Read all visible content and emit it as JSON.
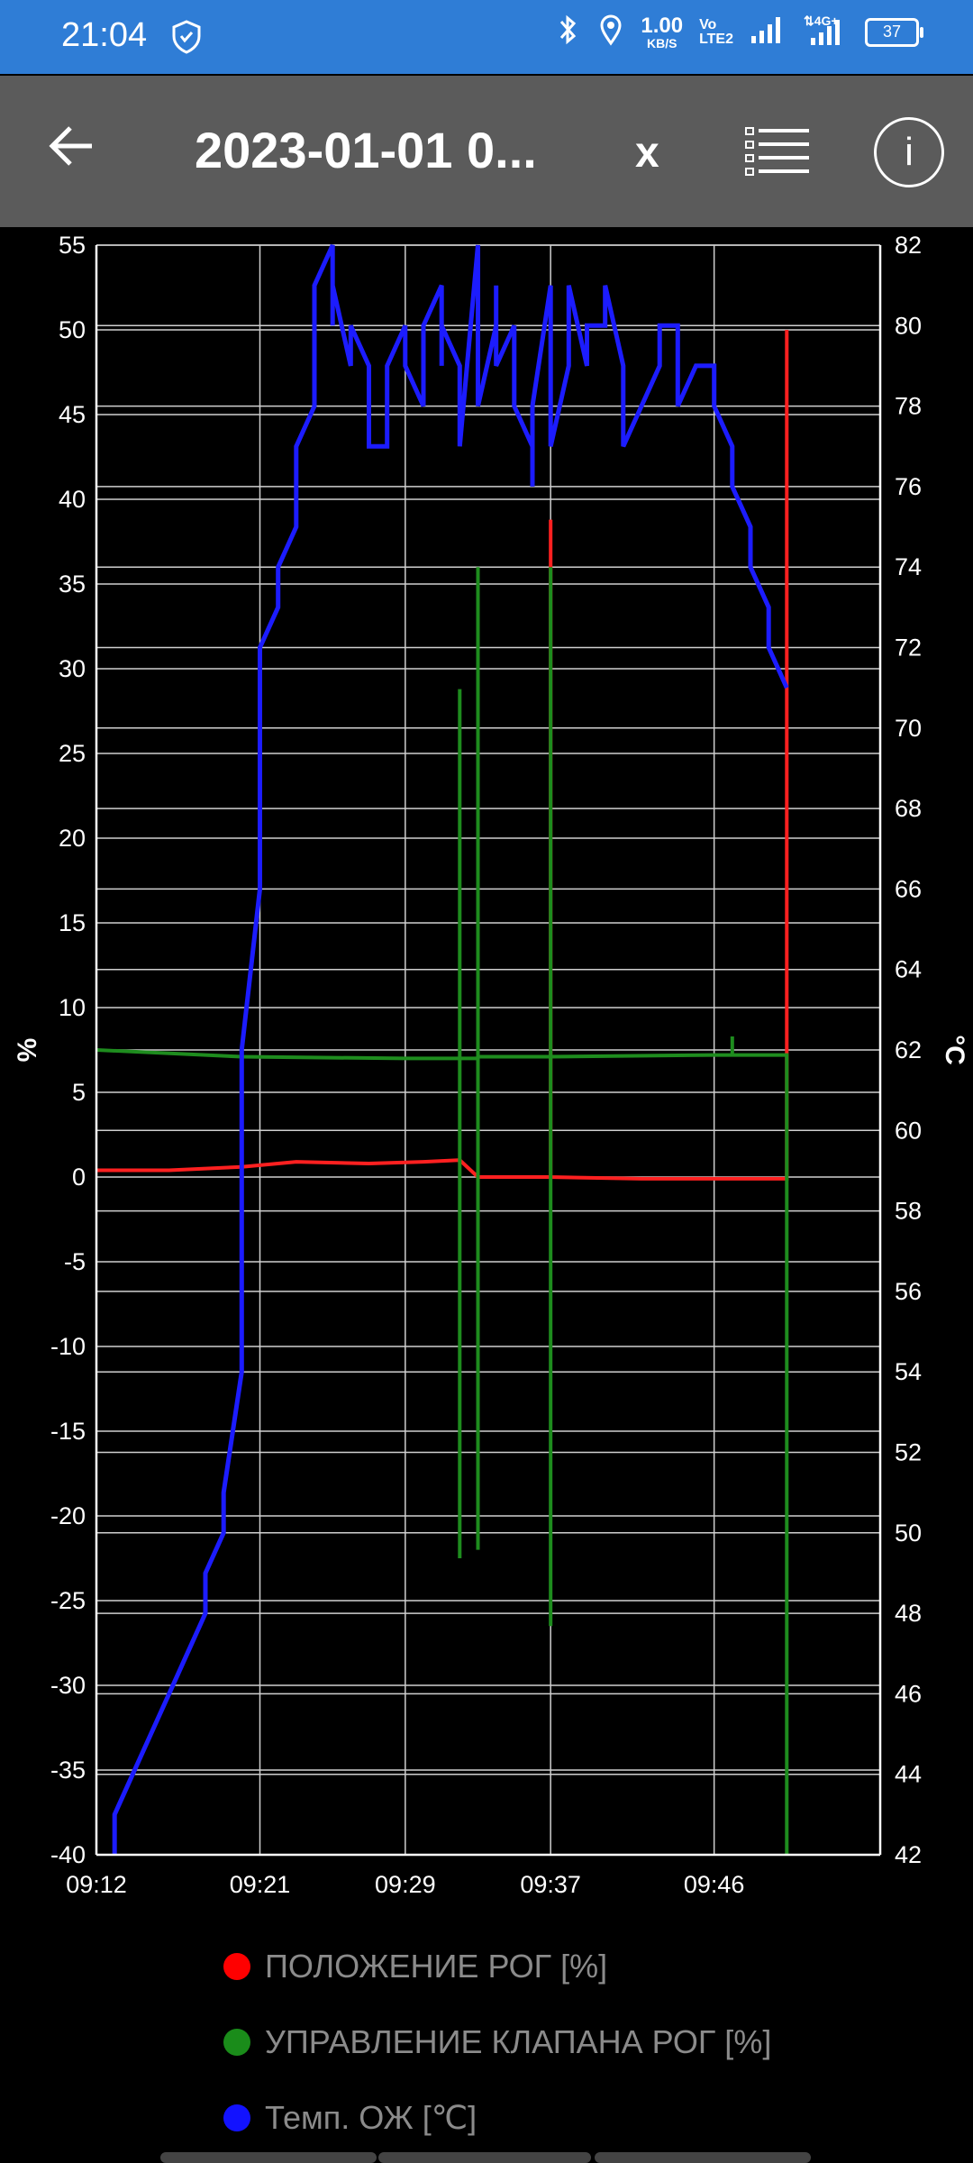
{
  "status_bar": {
    "time": "21:04",
    "net_speed_value": "1.00",
    "net_speed_unit": "KB/S",
    "volte_top": "Vo",
    "volte_bottom": "LTE2",
    "battery": "37",
    "icons": [
      "shield-icon",
      "bluetooth-icon",
      "location-icon",
      "signal-icon",
      "4g-signal-icon",
      "battery-icon"
    ]
  },
  "app_bar": {
    "title": "2023-01-01 0...",
    "close_label": "x",
    "info_label": "i",
    "icons": [
      "back-arrow-icon",
      "list-icon",
      "info-icon"
    ]
  },
  "chart_data": {
    "type": "line",
    "x_ticks": [
      "09:12",
      "09:21",
      "09:29",
      "09:37",
      "09:46"
    ],
    "left_axis": {
      "label": "%",
      "ticks": [
        55,
        50,
        45,
        40,
        35,
        30,
        25,
        20,
        15,
        10,
        5,
        0,
        -5,
        -10,
        -15,
        -20,
        -25,
        -30,
        -35,
        -40
      ],
      "range": [
        -40,
        55
      ]
    },
    "right_axis": {
      "label": "°C",
      "ticks": [
        82,
        80,
        78,
        76,
        74,
        72,
        70,
        68,
        66,
        64,
        62,
        60,
        58,
        56,
        54,
        52,
        50,
        48,
        46,
        44,
        42
      ],
      "range": [
        42,
        82
      ]
    },
    "grid": true,
    "series": [
      {
        "name": "ПОЛОЖЕНИЕ РОГ [%]",
        "axis": "left",
        "color": "#ff2020",
        "points": [
          [
            "09:12",
            0.4
          ],
          [
            "09:16",
            0.4
          ],
          [
            "09:20",
            0.6
          ],
          [
            "09:23",
            0.9
          ],
          [
            "09:27",
            0.8
          ],
          [
            "09:30",
            0.9
          ],
          [
            "09:32",
            1.0
          ],
          [
            "09:33",
            0.0
          ],
          [
            "09:37",
            0.0
          ],
          [
            "09:37",
            38.8
          ],
          [
            "09:37",
            36.0
          ],
          [
            "09:37",
            0.0
          ],
          [
            "09:42",
            -0.1
          ],
          [
            "09:50",
            -0.1
          ],
          [
            "09:50",
            50.0
          ],
          [
            "09:50",
            -0.2
          ]
        ]
      },
      {
        "name": "УПРАВЛЕНИЕ КЛАПАНА РОГ [%]",
        "axis": "left",
        "color": "#1e8c1e",
        "points": [
          [
            "09:12",
            7.5
          ],
          [
            "09:20",
            7.1
          ],
          [
            "09:29",
            7.0
          ],
          [
            "09:32",
            7.0
          ],
          [
            "09:32",
            28.8
          ],
          [
            "09:32",
            -22.5
          ],
          [
            "09:32",
            7.0
          ],
          [
            "09:33",
            7.0
          ],
          [
            "09:33",
            36.0
          ],
          [
            "09:33",
            -22.0
          ],
          [
            "09:33",
            7.1
          ],
          [
            "09:37",
            7.1
          ],
          [
            "09:37",
            36.0
          ],
          [
            "09:37",
            -26.5
          ],
          [
            "09:37",
            7.1
          ],
          [
            "09:46",
            7.2
          ],
          [
            "09:47",
            7.2
          ],
          [
            "09:47",
            8.3
          ],
          [
            "09:47",
            7.2
          ],
          [
            "09:50",
            7.2
          ],
          [
            "09:50",
            -40.0
          ]
        ]
      },
      {
        "name": "Темп. ОЖ [°C]",
        "axis": "right",
        "color": "#1c1cff",
        "points": [
          [
            "09:13",
            42.0
          ],
          [
            "09:13",
            43.0
          ],
          [
            "09:14",
            44.0
          ],
          [
            "09:15",
            45.0
          ],
          [
            "09:16",
            46.0
          ],
          [
            "09:17",
            47.0
          ],
          [
            "09:18",
            48.0
          ],
          [
            "09:18",
            49.0
          ],
          [
            "09:19",
            50.0
          ],
          [
            "09:19",
            51.0
          ],
          [
            "09:20",
            54.0
          ],
          [
            "09:20",
            58.0
          ],
          [
            "09:20",
            62.0
          ],
          [
            "09:21",
            66.0
          ],
          [
            "09:21",
            69.0
          ],
          [
            "09:21",
            72.0
          ],
          [
            "09:22",
            73.0
          ],
          [
            "09:22",
            74.0
          ],
          [
            "09:23",
            75.0
          ],
          [
            "09:23",
            76.0
          ],
          [
            "09:23",
            77.0
          ],
          [
            "09:24",
            78.0
          ],
          [
            "09:24",
            79.0
          ],
          [
            "09:24",
            81.0
          ],
          [
            "09:25",
            82.0
          ],
          [
            "09:25",
            80.0
          ],
          [
            "09:25",
            81.0
          ],
          [
            "09:26",
            79.0
          ],
          [
            "09:26",
            80.0
          ],
          [
            "09:27",
            79.0
          ],
          [
            "09:27",
            78.0
          ],
          [
            "09:27",
            77.0
          ],
          [
            "09:28",
            77.0
          ],
          [
            "09:28",
            79.0
          ],
          [
            "09:29",
            80.0
          ],
          [
            "09:29",
            79.0
          ],
          [
            "09:30",
            78.0
          ],
          [
            "09:30",
            80.0
          ],
          [
            "09:31",
            81.0
          ],
          [
            "09:31",
            79.0
          ],
          [
            "09:31",
            80.0
          ],
          [
            "09:32",
            79.0
          ],
          [
            "09:32",
            77.0
          ],
          [
            "09:33",
            82.0
          ],
          [
            "09:33",
            79.0
          ],
          [
            "09:33",
            78.0
          ],
          [
            "09:34",
            80.0
          ],
          [
            "09:34",
            81.0
          ],
          [
            "09:34",
            79.0
          ],
          [
            "09:35",
            80.0
          ],
          [
            "09:35",
            78.0
          ],
          [
            "09:36",
            77.0
          ],
          [
            "09:36",
            76.0
          ],
          [
            "09:36",
            78.0
          ],
          [
            "09:37",
            81.0
          ],
          [
            "09:37",
            78.0
          ],
          [
            "09:37",
            77.0
          ],
          [
            "09:38",
            79.0
          ],
          [
            "09:38",
            81.0
          ],
          [
            "09:39",
            79.0
          ],
          [
            "09:39",
            80.0
          ],
          [
            "09:40",
            80.0
          ],
          [
            "09:40",
            81.0
          ],
          [
            "09:41",
            79.0
          ],
          [
            "09:41",
            78.0
          ],
          [
            "09:41",
            77.0
          ],
          [
            "09:42",
            78.0
          ],
          [
            "09:43",
            79.0
          ],
          [
            "09:43",
            80.0
          ],
          [
            "09:44",
            80.0
          ],
          [
            "09:44",
            78.0
          ],
          [
            "09:45",
            79.0
          ],
          [
            "09:46",
            79.0
          ],
          [
            "09:46",
            78.0
          ],
          [
            "09:47",
            77.0
          ],
          [
            "09:47",
            76.0
          ],
          [
            "09:48",
            75.0
          ],
          [
            "09:48",
            74.0
          ],
          [
            "09:49",
            73.0
          ],
          [
            "09:49",
            72.0
          ],
          [
            "09:50",
            71.0
          ]
        ]
      }
    ]
  },
  "legend": [
    {
      "label": "ПОЛОЖЕНИЕ РОГ [%]",
      "color": "#ff0000"
    },
    {
      "label": "УПРАВЛЕНИЕ КЛАПАНА РОГ [%]",
      "color": "#1a8c1a"
    },
    {
      "label": "Темп. ОЖ [℃]",
      "color": "#1212ff"
    }
  ]
}
